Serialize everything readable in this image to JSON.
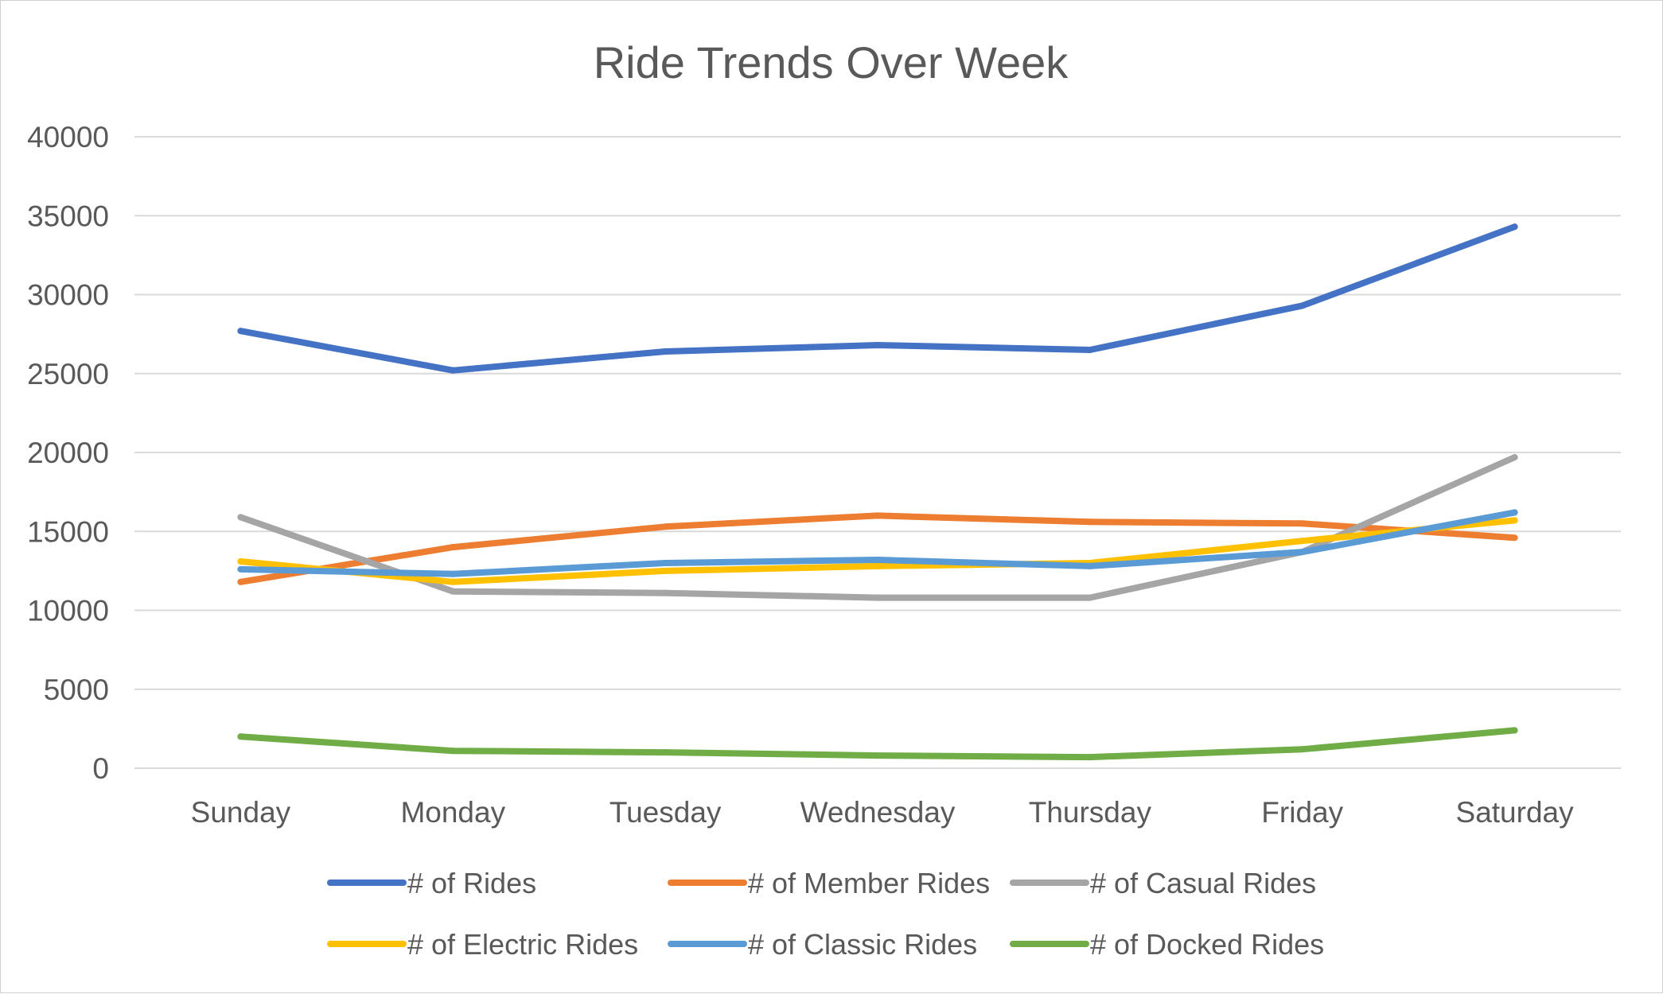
{
  "chart_data": {
    "type": "line",
    "title": "Ride Trends Over Week",
    "xlabel": "",
    "ylabel": "",
    "categories": [
      "Sunday",
      "Monday",
      "Tuesday",
      "Wednesday",
      "Thursday",
      "Friday",
      "Saturday"
    ],
    "ylim": [
      0,
      40000
    ],
    "yticks": [
      "0",
      "5000",
      "10000",
      "15000",
      "20000",
      "25000",
      "30000",
      "35000",
      "40000"
    ],
    "grid": true,
    "legend_position": "bottom",
    "series": [
      {
        "name": "# of Rides",
        "color": "#4472C4",
        "values": [
          27700,
          25200,
          26400,
          26800,
          26500,
          29300,
          34300
        ]
      },
      {
        "name": "# of Member Rides",
        "color": "#ED7D31",
        "values": [
          11800,
          14000,
          15300,
          16000,
          15600,
          15500,
          14600
        ]
      },
      {
        "name": "# of Casual Rides",
        "color": "#A5A5A5",
        "values": [
          15900,
          11200,
          11100,
          10800,
          10800,
          13700,
          19700
        ]
      },
      {
        "name": "# of Electric Rides",
        "color": "#FFC000",
        "values": [
          13100,
          11800,
          12500,
          12800,
          13000,
          14400,
          15700
        ]
      },
      {
        "name": "# of Classic Rides",
        "color": "#5B9BD5",
        "values": [
          12600,
          12300,
          13000,
          13200,
          12800,
          13700,
          16200
        ]
      },
      {
        "name": "# of Docked Rides",
        "color": "#70AD47",
        "values": [
          2000,
          1100,
          1000,
          800,
          700,
          1200,
          2400
        ]
      }
    ]
  }
}
